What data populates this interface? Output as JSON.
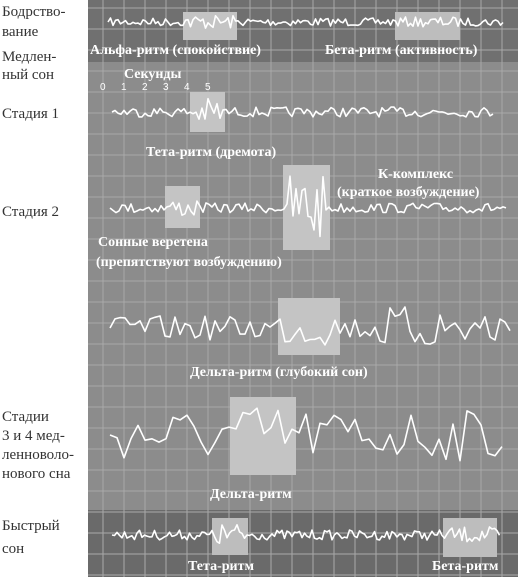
{
  "labels": {
    "wake": [
      "Бодрство-",
      "вание"
    ],
    "nrem": [
      "Медлен-",
      "ный сон"
    ],
    "stage1": "Стадия 1",
    "stage2": "Стадия 2",
    "stage34": [
      "Стадии",
      "3 и 4 мед-",
      "ленноволо-",
      "нового сна"
    ],
    "rem": [
      "Быстрый",
      "сон"
    ]
  },
  "annotations": {
    "alpha": "Альфа-ритм (спокойствие)",
    "beta": "Бета-ритм (активность)",
    "seconds": "Секунды",
    "seconds_ticks": [
      "0",
      "1",
      "2",
      "3",
      "4",
      "5"
    ],
    "theta_drowsy": "Тета-ритм (дремота)",
    "k_complex": "К-комплекс",
    "k_note": "(краткое возбуждение)",
    "spindles": "Сонные веретена",
    "spindles_note": "(препятствуют возбуждению)",
    "delta_deep": "Дельта-ритм (глубокий сон)",
    "delta": "Дельта-ритм",
    "rem_theta": "Тета-ритм",
    "rem_beta": "Бета-ритм"
  }
}
